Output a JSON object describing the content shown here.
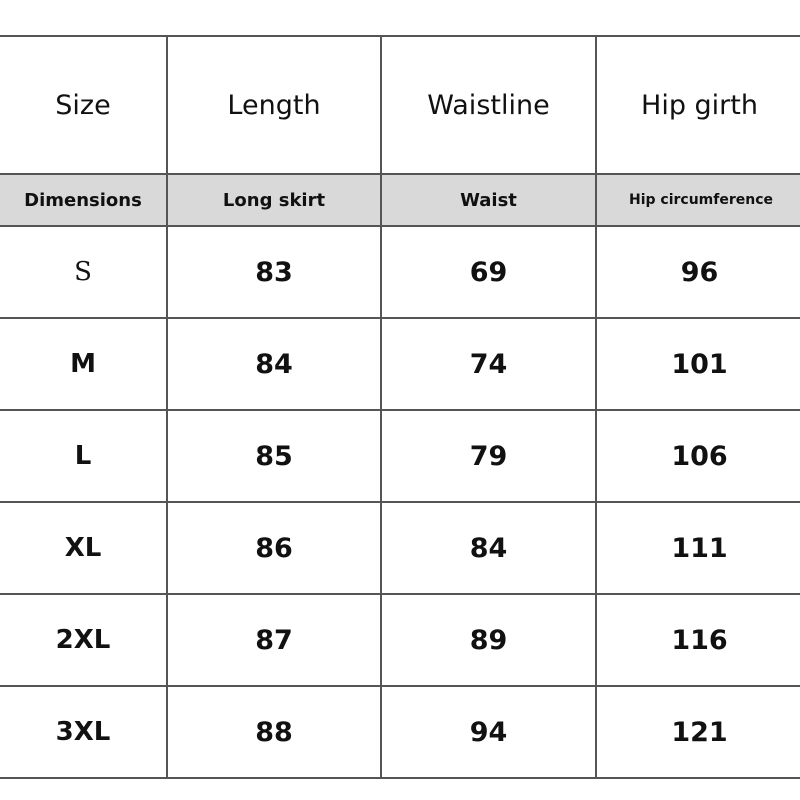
{
  "header": [
    "Size",
    "Length",
    "Waistline",
    "Hip girth"
  ],
  "subheader": [
    "Dimensions",
    "Long skirt",
    "Waist",
    "Hip circumference"
  ],
  "rows": [
    [
      "S",
      "83",
      "69",
      "96"
    ],
    [
      "M",
      "84",
      "74",
      "101"
    ],
    [
      "L",
      "85",
      "79",
      "106"
    ],
    [
      "XL",
      "86",
      "84",
      "111"
    ],
    [
      "2XL",
      "87",
      "89",
      "116"
    ],
    [
      "3XL",
      "88",
      "94",
      "121"
    ]
  ],
  "colors": {
    "subheader_bg": "#d9d9d9",
    "border": "#555555"
  }
}
